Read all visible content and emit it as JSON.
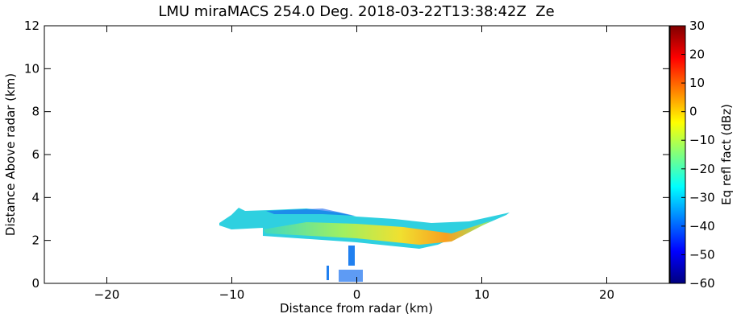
{
  "chart_data": {
    "type": "rhi",
    "title": "LMU miraMACS 254.0 Deg. 2018-03-22T13:38:42Z  Ze",
    "x_label": "Distance from radar (km)",
    "y_label": "Distance Above radar  (km)",
    "xlim": [
      -25,
      25
    ],
    "xticks": [
      {
        "value": -20,
        "label": "−20"
      },
      {
        "value": -10,
        "label": "−10"
      },
      0,
      10,
      20
    ],
    "ylim": [
      0,
      12
    ],
    "yticks": [
      0,
      2,
      4,
      6,
      8,
      10,
      12
    ],
    "colormap": "jet",
    "colorbar": {
      "label": "Eq refl fact (dBz)",
      "lim": [
        -60,
        30
      ],
      "ticks": [
        {
          "value": -60,
          "label": "−60"
        },
        {
          "value": -50,
          "label": "−50"
        },
        {
          "value": -40,
          "label": "−40"
        },
        {
          "value": -30,
          "label": "−30"
        },
        {
          "value": -20,
          "label": "−20"
        },
        {
          "value": -10,
          "label": "−10"
        },
        0,
        10,
        20,
        30
      ]
    }
  }
}
